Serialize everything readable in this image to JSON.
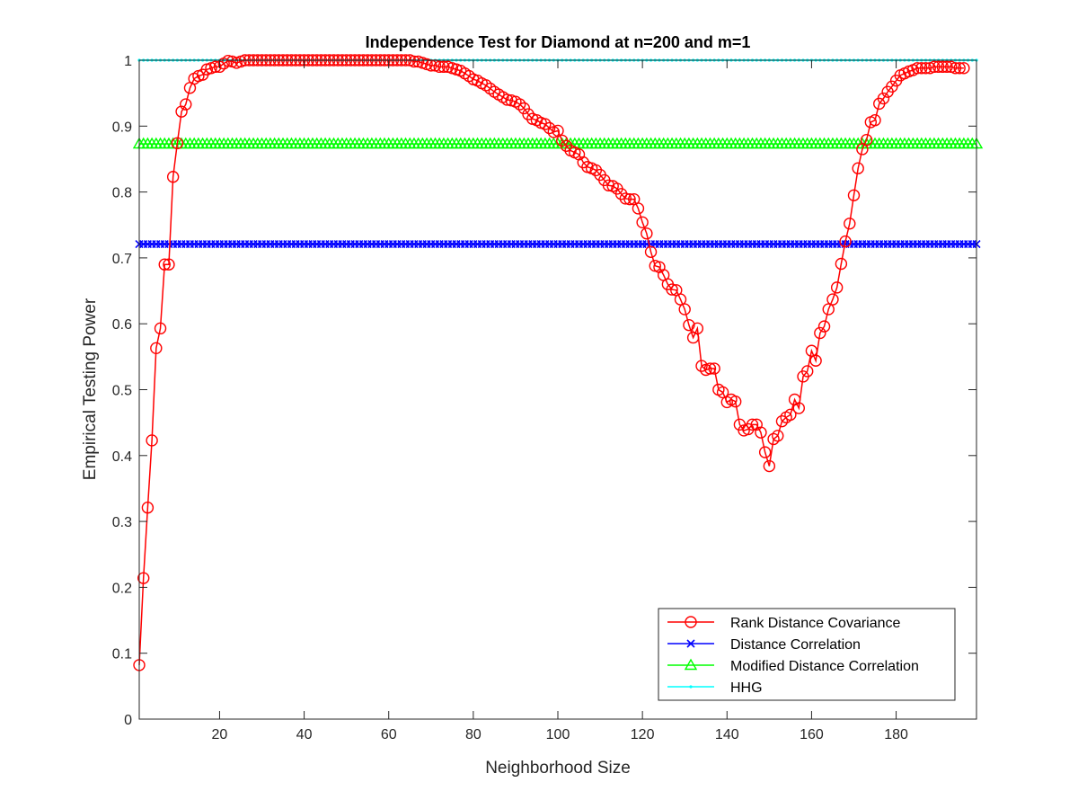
{
  "chart_data": {
    "type": "line",
    "title": "Independence Test for Diamond at n=200 and m=1",
    "xlabel": "Neighborhood Size",
    "ylabel": "Empirical Testing Power",
    "xlim": [
      1,
      199
    ],
    "ylim": [
      0,
      1
    ],
    "xticks": [
      20,
      40,
      60,
      80,
      100,
      120,
      140,
      160,
      180
    ],
    "yticks": [
      0,
      0.1,
      0.2,
      0.3,
      0.4,
      0.5,
      0.6,
      0.7,
      0.8,
      0.9,
      1
    ],
    "grid": false,
    "legend_position": "bottom-right",
    "series": [
      {
        "name": "Rank Distance Covariance",
        "color": "#ff0000",
        "marker": "circle",
        "x_start": 1,
        "values": [
          0.082,
          0.214,
          0.321,
          0.423,
          0.563,
          0.593,
          0.69,
          0.69,
          0.823,
          0.874,
          0.922,
          0.933,
          0.958,
          0.972,
          0.976,
          0.978,
          0.986,
          0.988,
          0.99,
          0.99,
          0.995,
          0.999,
          0.998,
          0.996,
          0.998,
          1,
          1,
          1,
          1,
          1,
          1,
          1,
          1,
          1,
          1,
          1,
          1,
          1,
          1,
          1,
          1,
          1,
          1,
          1,
          1,
          1,
          1,
          1,
          1,
          1,
          1,
          1,
          1,
          1,
          1,
          1,
          1,
          1,
          1,
          1,
          1,
          1,
          1,
          1,
          1,
          0.998,
          0.998,
          0.996,
          0.994,
          0.992,
          0.992,
          0.99,
          0.99,
          0.99,
          0.988,
          0.986,
          0.984,
          0.98,
          0.976,
          0.971,
          0.969,
          0.965,
          0.962,
          0.957,
          0.952,
          0.948,
          0.944,
          0.94,
          0.939,
          0.937,
          0.933,
          0.927,
          0.918,
          0.911,
          0.909,
          0.905,
          0.903,
          0.897,
          0.891,
          0.893,
          0.878,
          0.87,
          0.863,
          0.86,
          0.857,
          0.845,
          0.838,
          0.836,
          0.833,
          0.826,
          0.818,
          0.81,
          0.809,
          0.805,
          0.797,
          0.79,
          0.789,
          0.789,
          0.775,
          0.754,
          0.737,
          0.709,
          0.688,
          0.686,
          0.674,
          0.66,
          0.652,
          0.651,
          0.637,
          0.622,
          0.598,
          0.579,
          0.593,
          0.536,
          0.53,
          0.532,
          0.532,
          0.5,
          0.496,
          0.481,
          0.485,
          0.482,
          0.447,
          0.438,
          0.44,
          0.447,
          0.447,
          0.435,
          0.405,
          0.384,
          0.425,
          0.43,
          0.452,
          0.458,
          0.462,
          0.485,
          0.472,
          0.52,
          0.528,
          0.559,
          0.544,
          0.586,
          0.596,
          0.622,
          0.637,
          0.655,
          0.691,
          0.725,
          0.752,
          0.795,
          0.836,
          0.865,
          0.879,
          0.906,
          0.909,
          0.934,
          0.942,
          0.952,
          0.96,
          0.969,
          0.977,
          0.98,
          0.983,
          0.985,
          0.988,
          0.988,
          0.988,
          0.988,
          0.99,
          0.99,
          0.99,
          0.99,
          0.99,
          0.988,
          0.988,
          0.988
        ]
      },
      {
        "name": "Distance Correlation",
        "color": "#0000ff",
        "marker": "x",
        "constant": 0.721
      },
      {
        "name": "Modified Distance Correlation",
        "color": "#00ff00",
        "marker": "triangle",
        "constant": 0.873
      },
      {
        "name": "HHG",
        "color": "#00ffff",
        "marker": "dot",
        "constant": 1.0
      }
    ]
  }
}
